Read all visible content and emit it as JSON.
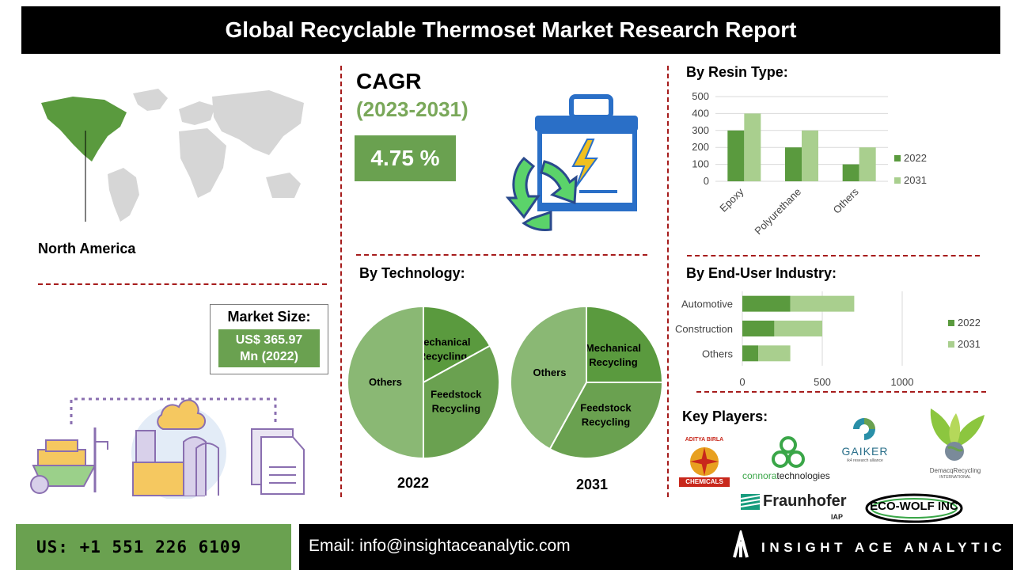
{
  "title": "Global Recyclable Thermoset Market Research Report",
  "region": "North America",
  "cagr": {
    "label": "CAGR",
    "period": "(2023-2031)",
    "value": "4.75 %"
  },
  "market_size": {
    "label": "Market Size:",
    "value_line1": "US$ 365.97",
    "value_line2": "Mn (2022)"
  },
  "sections": {
    "resin": "By Resin Type:",
    "technology": "By Technology:",
    "end_user": "By End-User Industry:",
    "key_players": "Key Players:"
  },
  "colors": {
    "accent_green": "#6aa150",
    "dark_green": "#5a9a3e",
    "light_green": "#a9cf8e",
    "pie_others": "#8ab874",
    "divider_red": "#a61c1c"
  },
  "chart_data": [
    {
      "type": "bar",
      "title": "By Resin Type:",
      "categories": [
        "Epoxy",
        "Polyurethane",
        "Others"
      ],
      "series": [
        {
          "name": "2022",
          "values": [
            300,
            200,
            100
          ]
        },
        {
          "name": "2031",
          "values": [
            400,
            300,
            200
          ]
        }
      ],
      "yticks": [
        "0",
        "100",
        "200",
        "300",
        "400",
        "500"
      ],
      "ylim": [
        0,
        500
      ],
      "legend": "right",
      "grid": true
    },
    {
      "type": "pie",
      "title": "By Technology:",
      "year": "2022",
      "slices": [
        {
          "label": "Mechanical Recycling",
          "value": 17
        },
        {
          "label": "Feedstock Recycling",
          "value": 33
        },
        {
          "label": "Others",
          "value": 50
        }
      ]
    },
    {
      "type": "pie",
      "title": "By Technology:",
      "year": "2031",
      "slices": [
        {
          "label": "Mechanical Recycling",
          "value": 25
        },
        {
          "label": "Feedstock Recycling",
          "value": 33
        },
        {
          "label": "Others",
          "value": 42
        }
      ]
    },
    {
      "type": "bar",
      "orientation": "horizontal",
      "stacked": true,
      "title": "By End-User Industry:",
      "categories": [
        "Automotive",
        "Construction",
        "Others"
      ],
      "series": [
        {
          "name": "2022",
          "values": [
            300,
            200,
            100
          ]
        },
        {
          "name": "2031",
          "values": [
            400,
            300,
            200
          ]
        }
      ],
      "xticks": [
        "0",
        "500",
        "1000"
      ],
      "xlim": [
        0,
        1000
      ],
      "legend": "right",
      "grid": true
    }
  ],
  "key_players": [
    {
      "name": "ADITYA BIRLA",
      "sub": "CHEMICALS"
    },
    {
      "name": "connora",
      "sub": "technologies"
    },
    {
      "name": "GAIKER",
      "sub": "ik4 research alliance"
    },
    {
      "name": "DemacqRecycling",
      "sub": "INTERNATIONAL"
    },
    {
      "name": "Fraunhofer",
      "sub": "IAP"
    },
    {
      "name": "ECO-WOLF INC",
      "sub": ""
    }
  ],
  "footer": {
    "phone": "US: +1 551 226 6109",
    "email": "Email: info@insightaceanalytic.com",
    "brand": "INSIGHT ACE ANALYTIC"
  }
}
